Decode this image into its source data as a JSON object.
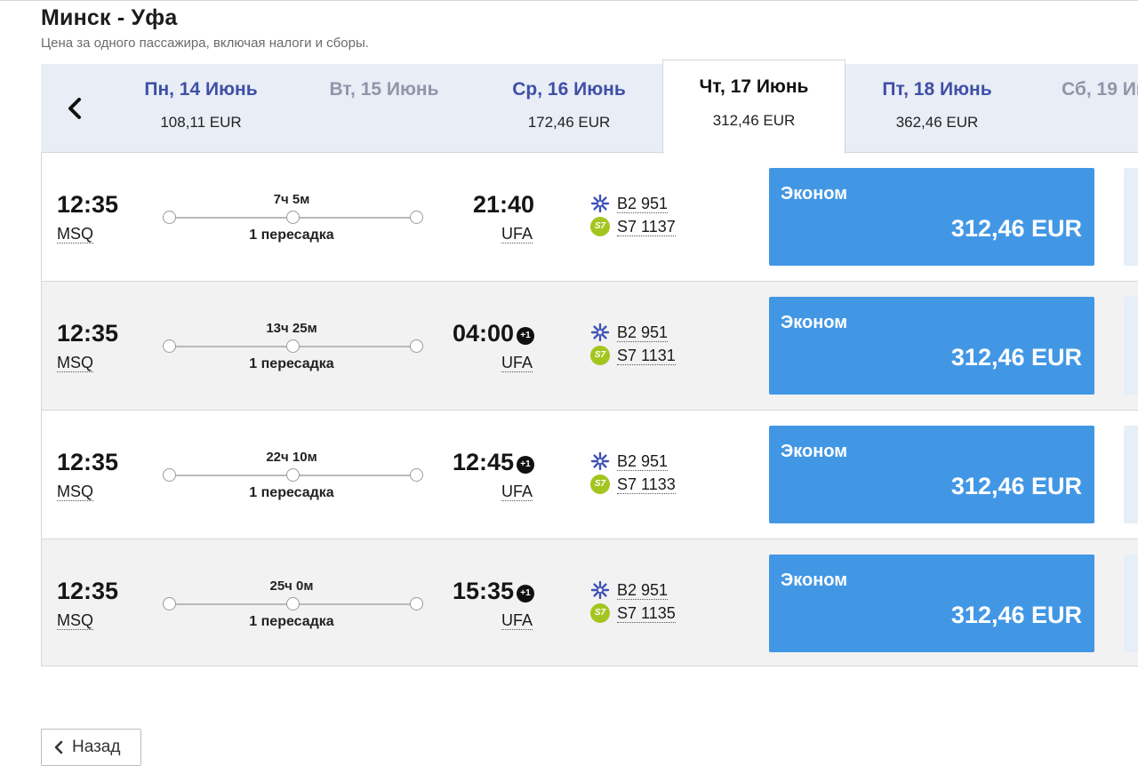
{
  "header": {
    "route_title": "Минск - Уфа",
    "subtitle": "Цена за одного пассажира, включая налоги и сборы."
  },
  "date_strip": {
    "prev_icon": "chevron-left-icon",
    "tabs": [
      {
        "label": "Пн, 14 Июнь",
        "price": "108,11 EUR",
        "state": "available"
      },
      {
        "label": "Вт, 15 Июнь",
        "price": "",
        "state": "unavailable"
      },
      {
        "label": "Ср, 16 Июнь",
        "price": "172,46 EUR",
        "state": "available"
      },
      {
        "label": "Чт, 17 Июнь",
        "price": "312,46 EUR",
        "state": "selected"
      },
      {
        "label": "Пт, 18 Июнь",
        "price": "362,46 EUR",
        "state": "available"
      },
      {
        "label": "Сб, 19 Ию",
        "price": "",
        "state": "unavailable"
      }
    ]
  },
  "flights": [
    {
      "dep_time": "12:35",
      "dep_code": "MSQ",
      "arr_time": "21:40",
      "arr_day_offset": "",
      "arr_code": "UFA",
      "duration": "7ч 5м",
      "stops": "1 пересадка",
      "carriers": [
        {
          "icon": "belavia-logo-icon",
          "number": "B2 951"
        },
        {
          "icon": "s7-logo-icon",
          "logo_text": "S7",
          "number": "S7 1137"
        }
      ],
      "fare_class": "Эконом",
      "fare_price": "312,46 EUR"
    },
    {
      "dep_time": "12:35",
      "dep_code": "MSQ",
      "arr_time": "04:00",
      "arr_day_offset": "+1",
      "arr_code": "UFA",
      "duration": "13ч 25м",
      "stops": "1 пересадка",
      "carriers": [
        {
          "icon": "belavia-logo-icon",
          "number": "B2 951"
        },
        {
          "icon": "s7-logo-icon",
          "logo_text": "S7",
          "number": "S7 1131"
        }
      ],
      "fare_class": "Эконом",
      "fare_price": "312,46 EUR"
    },
    {
      "dep_time": "12:35",
      "dep_code": "MSQ",
      "arr_time": "12:45",
      "arr_day_offset": "+1",
      "arr_code": "UFA",
      "duration": "22ч 10м",
      "stops": "1 пересадка",
      "carriers": [
        {
          "icon": "belavia-logo-icon",
          "number": "B2 951"
        },
        {
          "icon": "s7-logo-icon",
          "logo_text": "S7",
          "number": "S7 1133"
        }
      ],
      "fare_class": "Эконом",
      "fare_price": "312,46 EUR"
    },
    {
      "dep_time": "12:35",
      "dep_code": "MSQ",
      "arr_time": "15:35",
      "arr_day_offset": "+1",
      "arr_code": "UFA",
      "duration": "25ч 0м",
      "stops": "1 пересадка",
      "carriers": [
        {
          "icon": "belavia-logo-icon",
          "number": "B2 951"
        },
        {
          "icon": "s7-logo-icon",
          "logo_text": "S7",
          "number": "S7 1135"
        }
      ],
      "fare_class": "Эконом",
      "fare_price": "312,46 EUR"
    }
  ],
  "footer": {
    "back_label": "Назад",
    "back_icon": "chevron-left-icon"
  },
  "colors": {
    "accent_blue": "#4297e5",
    "date_link": "#3f4fa6",
    "date_strip_bg": "#e8edf6",
    "alt_row_bg": "#f2f2f2",
    "s7_green": "#a4c520",
    "belavia_blue": "#3f51b5"
  }
}
